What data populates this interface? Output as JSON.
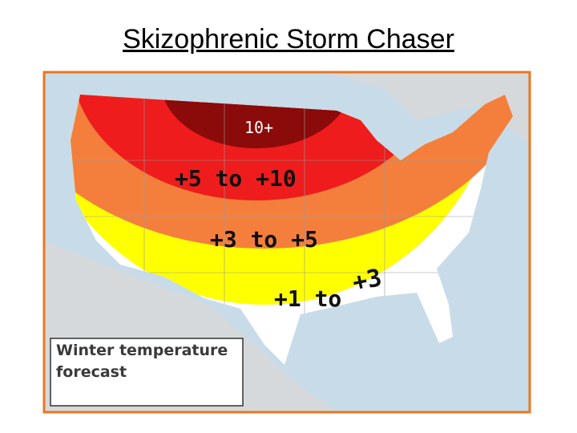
{
  "title": "Skizophrenic Storm Chaser",
  "map": {
    "labels": [
      "10+",
      "+5 to +10",
      "+3 to +5",
      "+1 to",
      "+3"
    ],
    "legend": [
      "Winter temperature",
      "forecast"
    ]
  }
}
